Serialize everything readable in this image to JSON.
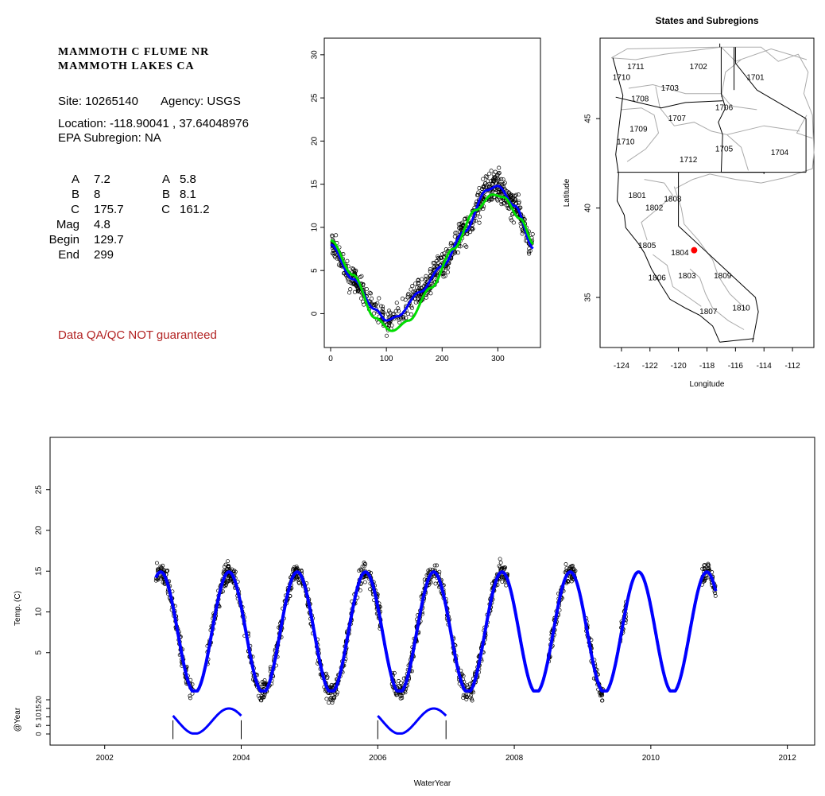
{
  "station": {
    "name_line1": "MAMMOTH C FLUME NR",
    "name_line2": "MAMMOTH LAKES CA",
    "site": "Site: 10265140",
    "agency": "Agency: USGS",
    "location": "Location: -118.90041 , 37.64048976",
    "subregion": "EPA Subregion: NA",
    "disclaimer": "Data QA/QC NOT guaranteed"
  },
  "params": {
    "col1": [
      {
        "label": "A",
        "value": "7.2"
      },
      {
        "label": "B",
        "value": "8"
      },
      {
        "label": "C",
        "value": "175.7"
      },
      {
        "label": "Mag",
        "value": "4.8"
      },
      {
        "label": "Begin",
        "value": "129.7"
      },
      {
        "label": "End",
        "value": "299"
      }
    ],
    "col2": [
      {
        "label": "A",
        "value": "5.8"
      },
      {
        "label": "B",
        "value": "8.1"
      },
      {
        "label": "C",
        "value": "161.2"
      }
    ]
  },
  "colors": {
    "fit_blue": "#0000ff",
    "fit_green": "#00dd00",
    "points": "#000000",
    "site_marker": "#ff0000"
  },
  "chart_data": [
    {
      "type": "scatter",
      "title": "",
      "xlabel": "",
      "ylabel": "",
      "xlim": [
        0,
        365
      ],
      "ylim": [
        -3,
        31
      ],
      "x_ticks": [
        0,
        100,
        200,
        300
      ],
      "y_ticks": [
        0,
        5,
        10,
        15,
        20,
        25,
        30
      ],
      "series": [
        {
          "kind": "points",
          "x": [
            5,
            20,
            40,
            60,
            80,
            100,
            120,
            140,
            160,
            180,
            200,
            220,
            240,
            260,
            280,
            300,
            320,
            340,
            360
          ],
          "y": [
            8,
            6,
            4,
            3,
            1,
            0,
            0.5,
            1,
            2,
            3,
            5,
            7,
            10,
            13,
            15,
            15,
            13,
            10,
            8
          ]
        },
        {
          "kind": "line",
          "color": "blue",
          "x": [
            0,
            40,
            80,
            100,
            120,
            160,
            200,
            240,
            280,
            300,
            330,
            365
          ],
          "y": [
            8,
            4,
            0.5,
            -0.8,
            -0.3,
            2.5,
            5.5,
            9.5,
            14.3,
            14.8,
            12.5,
            7.5
          ]
        },
        {
          "kind": "line",
          "color": "green",
          "x": [
            0,
            40,
            80,
            110,
            140,
            180,
            220,
            260,
            290,
            310,
            340,
            365
          ],
          "y": [
            8.5,
            4.5,
            -0.5,
            -2,
            -0.8,
            3,
            7.5,
            12,
            13.8,
            13.5,
            11,
            8
          ]
        }
      ]
    },
    {
      "type": "map",
      "title": "States and Subregions",
      "xlabel": "Longitude",
      "ylabel": "Latitude",
      "xlim": [
        -125.5,
        -110.5
      ],
      "ylim": [
        32.2,
        49.5
      ],
      "x_ticks": [
        -124,
        -122,
        -120,
        -118,
        -116,
        -114,
        -112
      ],
      "y_ticks": [
        35,
        40,
        45
      ],
      "region_labels": [
        {
          "label": "1711",
          "lon": -123.0,
          "lat": 47.9
        },
        {
          "label": "1702",
          "lon": -118.6,
          "lat": 47.9
        },
        {
          "label": "1701",
          "lon": -114.6,
          "lat": 47.3
        },
        {
          "label": "1710",
          "lon": -124.0,
          "lat": 47.3
        },
        {
          "label": "1703",
          "lon": -120.6,
          "lat": 46.7
        },
        {
          "label": "1708",
          "lon": -122.7,
          "lat": 46.1
        },
        {
          "label": "1706",
          "lon": -116.8,
          "lat": 45.6
        },
        {
          "label": "1707",
          "lon": -120.1,
          "lat": 45.0
        },
        {
          "label": "1709",
          "lon": -122.8,
          "lat": 44.4
        },
        {
          "label": "1710",
          "lon": -123.7,
          "lat": 43.7
        },
        {
          "label": "1705",
          "lon": -116.8,
          "lat": 43.3
        },
        {
          "label": "1704",
          "lon": -112.9,
          "lat": 43.1
        },
        {
          "label": "1712",
          "lon": -119.3,
          "lat": 42.7
        },
        {
          "label": "1801",
          "lon": -122.9,
          "lat": 40.7
        },
        {
          "label": "1808",
          "lon": -120.4,
          "lat": 40.5
        },
        {
          "label": "1802",
          "lon": -121.7,
          "lat": 40.0
        },
        {
          "label": "1805",
          "lon": -122.2,
          "lat": 37.9
        },
        {
          "label": "1804",
          "lon": -119.9,
          "lat": 37.5
        },
        {
          "label": "1809",
          "lon": -116.9,
          "lat": 36.2
        },
        {
          "label": "1806",
          "lon": -121.5,
          "lat": 36.1
        },
        {
          "label": "1803",
          "lon": -119.4,
          "lat": 36.2
        },
        {
          "label": "1807",
          "lon": -117.9,
          "lat": 34.2
        },
        {
          "label": "1810",
          "lon": -115.6,
          "lat": 34.4
        }
      ],
      "site": {
        "lon": -118.90041,
        "lat": 37.64048976
      }
    },
    {
      "type": "line",
      "title": "",
      "xlabel": "WaterYear",
      "ylabel": "Temp. (C)",
      "ylabel2": "@Year",
      "xlim": [
        2001.2,
        2012.4
      ],
      "ylim": [
        -2,
        30
      ],
      "x_ticks": [
        2002,
        2004,
        2006,
        2008,
        2010,
        2012
      ],
      "y_ticks": [
        5,
        10,
        15,
        20,
        25
      ],
      "y_ticks2": [
        0,
        5,
        10,
        15,
        20
      ],
      "series": [
        {
          "name": "",
          "kind": "sinusoid-fit",
          "color": "blue",
          "mean": 7.5,
          "amplitude": 7.4,
          "peak_phase": 0.82,
          "x_start": 2002.75,
          "x_end": 2010.95
        },
        {
          "name": "",
          "kind": "observed-points",
          "color": "black",
          "segments": [
            [
              2002.75,
              2003.3
            ],
            [
              2003.5,
              2004.05
            ],
            [
              2004.1,
              2005.05
            ],
            [
              2005.1,
              2006.05
            ],
            [
              2006.2,
              2007.05
            ],
            [
              2007.1,
              2007.9
            ],
            [
              2008.5,
              2008.9
            ],
            [
              2009.05,
              2009.3
            ],
            [
              2009.55,
              2009.65
            ],
            [
              2010.75,
              2010.95
            ]
          ]
        }
      ],
      "annual_insets": [
        {
          "year_start": 2003,
          "year_end": 2004
        },
        {
          "year_start": 2006,
          "year_end": 2007
        }
      ]
    }
  ]
}
